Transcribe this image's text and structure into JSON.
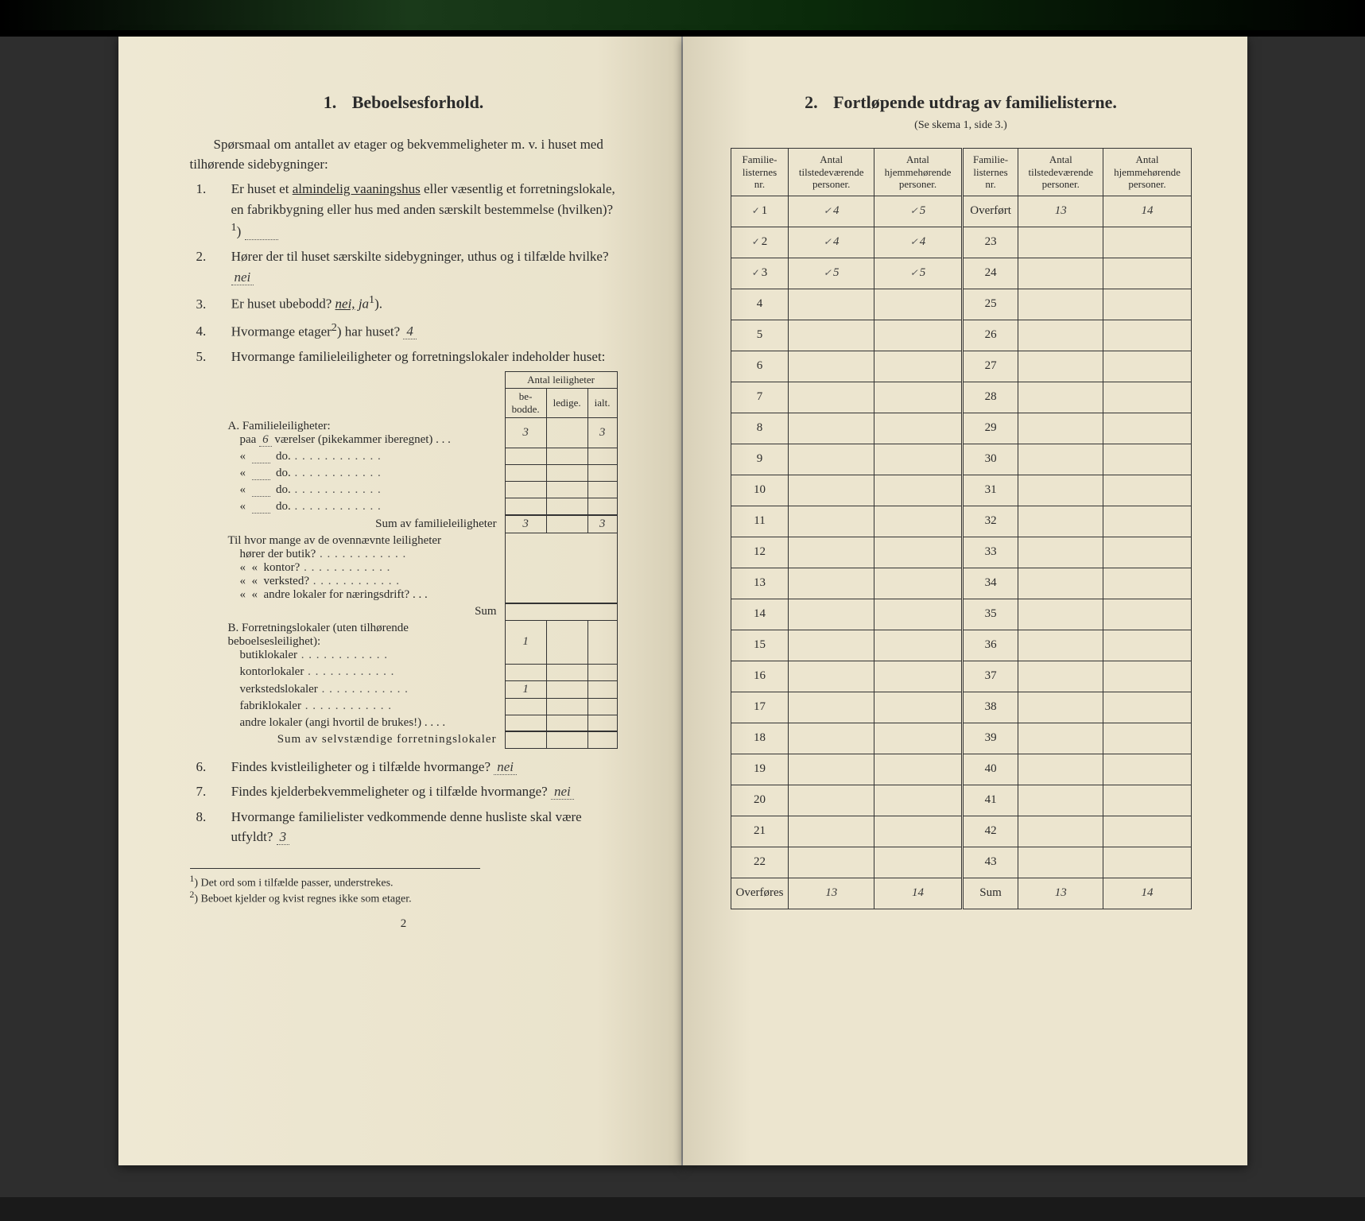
{
  "left": {
    "section_num": "1.",
    "section_title": "Beboelsesforhold.",
    "intro": "Spørsmaal om antallet av etager og bekvemmeligheter m. v. i huset med tilhørende sidebygninger:",
    "q1_pre": "Er huset et ",
    "q1_underlined": "almindelig vaaningshus",
    "q1_post": " eller væsentlig et forretningslokale, en fabrikbygning eller hus med anden særskilt bestemmelse (hvilken)?",
    "q1_sup": "1",
    "q2_text": "Hører der til huset særskilte sidebygninger, uthus og i tilfælde hvilke?",
    "q2_ans": "nei",
    "q3_text": "Er huset ubebodd?",
    "q3_ans_underlined": "nei,",
    "q3_ans_plain": "ja",
    "q3_sup": "1",
    "q4_text": "Hvormange etager",
    "q4_sup": "2",
    "q4_post": ") har huset?",
    "q4_ans": "4",
    "q5_text": "Hvormange familieleiligheter og forretningslokaler indeholder huset:",
    "leil_header_group": "Antal leiligheter",
    "leil_header_1": "be-\nbodde.",
    "leil_header_2": "ledige.",
    "leil_header_3": "ialt.",
    "A_title": "A. Familieleiligheter:",
    "A_row1_pre": "paa",
    "A_row1_val": "6",
    "A_row1_post": "værelser (pikekammer iberegnet) . . .",
    "A_row1_cells": [
      "3",
      "",
      "3"
    ],
    "A_row_do": "do.",
    "A_sum_label": "Sum av familieleiligheter",
    "A_sum_cells": [
      "3",
      "",
      "3"
    ],
    "mid1": "Til hvor mange av de ovennævnte leiligheter",
    "mid_rows": [
      "hører der butik?",
      "kontor?",
      "verksted?",
      "andre lokaler for næringsdrift?"
    ],
    "mid_sum": "Sum",
    "B_title": "B. Forretningslokaler (uten tilhørende beboelsesleilighet):",
    "B_rows": [
      {
        "label": "butiklokaler",
        "val": "1"
      },
      {
        "label": "kontorlokaler",
        "val": ""
      },
      {
        "label": "verkstedslokaler",
        "val": "1"
      },
      {
        "label": "fabriklokaler",
        "val": ""
      },
      {
        "label": "andre lokaler (angi hvortil de brukes!)",
        "val": ""
      }
    ],
    "B_sum": "Sum av selvstændige forretningslokaler",
    "q6_text": "Findes kvistleiligheter og i tilfælde hvormange?",
    "q6_ans": "nei",
    "q7_text": "Findes kjelderbekvemmeligheter og i tilfælde hvormange?",
    "q7_ans": "nei",
    "q8_text": "Hvormange familielister vedkommende denne husliste skal være utfyldt?",
    "q8_ans": "3",
    "foot1": "Det ord som i tilfælde passer, understrekes.",
    "foot2": "Beboet kjelder og kvist regnes ikke som etager.",
    "page_no": "2"
  },
  "right": {
    "section_num": "2.",
    "section_title": "Fortløpende utdrag av familielisterne.",
    "subcap": "(Se skema 1, side 3.)",
    "headers": {
      "c1": "Familie-\nlisternes\nnr.",
      "c2": "Antal\ntilstedeværende\npersoner.",
      "c3": "Antal\nhjemmehørende\npersoner.",
      "c4": "Familie-\nlisternes\nnr.",
      "c5": "Antal\ntilstedeværende\npersoner.",
      "c6": "Antal\nhjemmehørende\npersoner."
    },
    "rows_left": [
      {
        "n": "1",
        "a": "4",
        "b": "5",
        "tick": true
      },
      {
        "n": "2",
        "a": "4",
        "b": "4",
        "tick": true
      },
      {
        "n": "3",
        "a": "5",
        "b": "5",
        "tick": true
      },
      {
        "n": "4",
        "a": "",
        "b": ""
      },
      {
        "n": "5",
        "a": "",
        "b": ""
      },
      {
        "n": "6",
        "a": "",
        "b": ""
      },
      {
        "n": "7",
        "a": "",
        "b": ""
      },
      {
        "n": "8",
        "a": "",
        "b": ""
      },
      {
        "n": "9",
        "a": "",
        "b": ""
      },
      {
        "n": "10",
        "a": "",
        "b": ""
      },
      {
        "n": "11",
        "a": "",
        "b": ""
      },
      {
        "n": "12",
        "a": "",
        "b": ""
      },
      {
        "n": "13",
        "a": "",
        "b": ""
      },
      {
        "n": "14",
        "a": "",
        "b": ""
      },
      {
        "n": "15",
        "a": "",
        "b": ""
      },
      {
        "n": "16",
        "a": "",
        "b": ""
      },
      {
        "n": "17",
        "a": "",
        "b": ""
      },
      {
        "n": "18",
        "a": "",
        "b": ""
      },
      {
        "n": "19",
        "a": "",
        "b": ""
      },
      {
        "n": "20",
        "a": "",
        "b": ""
      },
      {
        "n": "21",
        "a": "",
        "b": ""
      },
      {
        "n": "22",
        "a": "",
        "b": ""
      }
    ],
    "rows_right_first": {
      "label": "Overført",
      "a": "13",
      "b": "14"
    },
    "rows_right_nums": [
      23,
      24,
      25,
      26,
      27,
      28,
      29,
      30,
      31,
      32,
      33,
      34,
      35,
      36,
      37,
      38,
      39,
      40,
      41,
      42,
      43
    ],
    "footer_left": {
      "label": "Overføres",
      "a": "13",
      "b": "14"
    },
    "footer_right": {
      "label": "Sum",
      "a": "13",
      "b": "14"
    }
  },
  "colors": {
    "paper": "#ebe4cf",
    "ink": "#2b2b2b",
    "hand": "#3a3a3a"
  }
}
